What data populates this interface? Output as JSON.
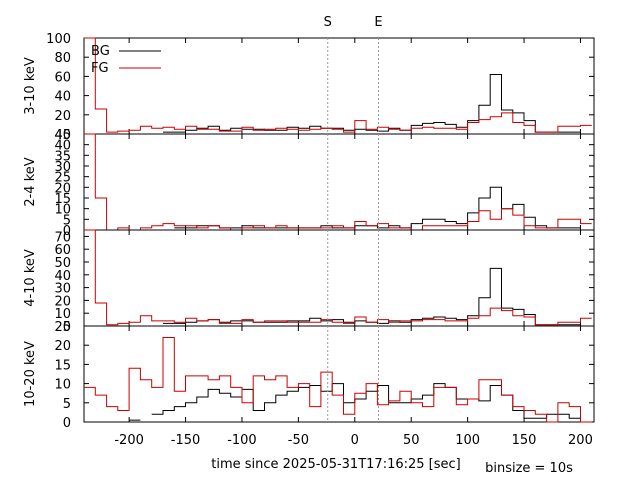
{
  "chart_data": {
    "type": "line",
    "style": "histogram-step",
    "xlabel": "time since 2025-05-31T17:16:25 [sec]",
    "binsize_label": "binsize = 10s",
    "xlim": [
      -240,
      212
    ],
    "x_ticks": [
      -200,
      -150,
      -100,
      -50,
      0,
      50,
      100,
      150,
      200
    ],
    "bin_width": 10,
    "bin_edges": [
      -240,
      -230,
      -220,
      -210,
      -200,
      -190,
      -180,
      -170,
      -160,
      -150,
      -140,
      -130,
      -120,
      -110,
      -100,
      -90,
      -80,
      -70,
      -60,
      -50,
      -40,
      -30,
      -20,
      -10,
      0,
      10,
      20,
      30,
      40,
      50,
      60,
      70,
      80,
      90,
      100,
      110,
      120,
      130,
      140,
      150,
      160,
      170,
      180,
      190,
      200,
      210
    ],
    "markers": [
      {
        "label": "S",
        "x": -24
      },
      {
        "label": "E",
        "x": 21
      }
    ],
    "legend": {
      "position": "top-left",
      "entries": [
        {
          "label": "BG",
          "color": "#000000"
        },
        {
          "label": "FG",
          "color": "#cc0000"
        }
      ]
    },
    "colors": {
      "BG": "#000000",
      "FG": "#cc0000",
      "marker_line": "#999999"
    },
    "panels": [
      {
        "ylabel": "3-10 keV",
        "ylim": [
          0,
          100
        ],
        "y_ticks": [
          20,
          40,
          60,
          80,
          100
        ],
        "y_tick_labels": [
          "20",
          "40",
          "60",
          "80",
          "100"
        ],
        "top_label": "",
        "bottom_label": "40",
        "show_legend": true,
        "series": [
          {
            "name": "BG",
            "values": [
              null,
              null,
              null,
              null,
              null,
              null,
              null,
              2,
              2,
              4,
              6,
              8,
              4,
              6,
              5,
              5,
              4,
              4,
              7,
              6,
              8,
              6,
              6,
              4,
              5,
              4,
              3,
              6,
              4,
              9,
              11,
              12,
              10,
              7,
              14,
              30,
              62,
              25,
              22,
              14,
              2,
              2,
              2,
              2,
              null
            ]
          },
          {
            "name": "FG",
            "values": [
              100,
              26,
              2,
              3,
              4,
              8,
              6,
              7,
              5,
              8,
              5,
              5,
              3,
              3,
              7,
              4,
              5,
              6,
              5,
              4,
              5,
              6,
              5,
              2,
              14,
              5,
              7,
              5,
              4,
              6,
              7,
              6,
              6,
              5,
              12,
              15,
              18,
              22,
              12,
              9,
              2,
              2,
              8,
              8,
              9
            ]
          }
        ]
      },
      {
        "ylabel": "2-4 keV",
        "ylim": [
          0,
          45
        ],
        "y_ticks": [
          5,
          10,
          15,
          20,
          25,
          30,
          35,
          40,
          45
        ],
        "y_tick_labels": [
          "5",
          "10",
          "15",
          "20",
          "25",
          "30",
          "35",
          "40",
          "45"
        ],
        "top_label": "",
        "bottom_label": "0",
        "show_legend": false,
        "series": [
          {
            "name": "BG",
            "values": [
              null,
              null,
              null,
              null,
              null,
              null,
              null,
              null,
              1,
              1,
              2,
              2,
              1,
              1,
              2,
              1,
              1,
              1,
              1,
              1,
              1,
              2,
              1,
              1,
              2,
              2,
              1,
              2,
              1,
              3,
              5,
              5,
              4,
              3,
              8,
              15,
              20,
              10,
              12,
              6,
              2,
              1,
              1,
              1,
              null
            ]
          },
          {
            "name": "FG",
            "values": [
              45,
              15,
              0,
              1,
              0,
              1,
              2,
              3,
              2,
              2,
              1,
              2,
              1,
              0,
              1,
              2,
              1,
              2,
              1,
              1,
              1,
              1,
              2,
              1,
              4,
              2,
              3,
              1,
              1,
              0,
              2,
              2,
              2,
              2,
              4,
              9,
              5,
              10,
              7,
              2,
              1,
              1,
              5,
              5,
              3
            ]
          }
        ]
      },
      {
        "ylabel": "4-10 keV",
        "ylim": [
          0,
          75
        ],
        "y_ticks": [
          10,
          20,
          30,
          40,
          50,
          60,
          70
        ],
        "y_tick_labels": [
          "10",
          "20",
          "30",
          "40",
          "50",
          "60",
          "70"
        ],
        "top_label": "",
        "bottom_label": "0",
        "show_legend": false,
        "series": [
          {
            "name": "BG",
            "values": [
              null,
              null,
              null,
              null,
              null,
              null,
              null,
              2,
              2,
              3,
              4,
              5,
              3,
              4,
              4,
              3,
              3,
              3,
              4,
              4,
              6,
              4,
              5,
              3,
              4,
              3,
              2,
              4,
              3,
              5,
              6,
              7,
              6,
              5,
              8,
              22,
              45,
              14,
              13,
              9,
              1,
              1,
              1,
              1,
              null
            ]
          },
          {
            "name": "FG",
            "values": [
              75,
              18,
              1,
              2,
              3,
              8,
              4,
              4,
              3,
              6,
              4,
              5,
              2,
              2,
              5,
              3,
              4,
              4,
              3,
              3,
              3,
              5,
              3,
              2,
              7,
              3,
              5,
              3,
              4,
              4,
              5,
              5,
              4,
              4,
              6,
              8,
              14,
              12,
              8,
              7,
              1,
              1,
              3,
              3,
              6
            ]
          }
        ]
      },
      {
        "ylabel": "10-20 keV",
        "ylim": [
          0,
          25
        ],
        "y_ticks": [
          0,
          5,
          10,
          15,
          20
        ],
        "y_tick_labels": [
          "0",
          "5",
          "10",
          "15",
          "20"
        ],
        "top_label": "25",
        "bottom_label": "",
        "show_legend": false,
        "series": [
          {
            "name": "BG",
            "values": [
              null,
              null,
              null,
              null,
              0.5,
              null,
              2,
              3,
              4,
              5,
              6.5,
              8.5,
              7.5,
              6.5,
              8.5,
              3,
              5,
              7,
              8,
              9,
              9.5,
              8,
              10,
              5,
              6,
              8,
              9.5,
              5,
              5,
              6,
              7,
              10,
              9,
              6,
              6,
              5.5,
              9.5,
              7,
              3,
              1,
              1,
              2,
              2,
              1,
              null
            ]
          },
          {
            "name": "FG",
            "values": [
              9,
              7,
              4,
              3,
              14,
              11,
              9,
              22,
              8,
              12,
              12,
              11,
              12,
              9,
              5,
              12,
              11,
              12,
              9,
              10,
              4,
              13,
              7,
              2,
              7.5,
              10,
              4.5,
              5.5,
              8,
              5,
              4,
              9,
              9,
              4.5,
              6,
              11,
              11,
              7,
              4,
              3,
              2,
              0,
              5,
              4,
              0
            ]
          }
        ]
      }
    ]
  }
}
